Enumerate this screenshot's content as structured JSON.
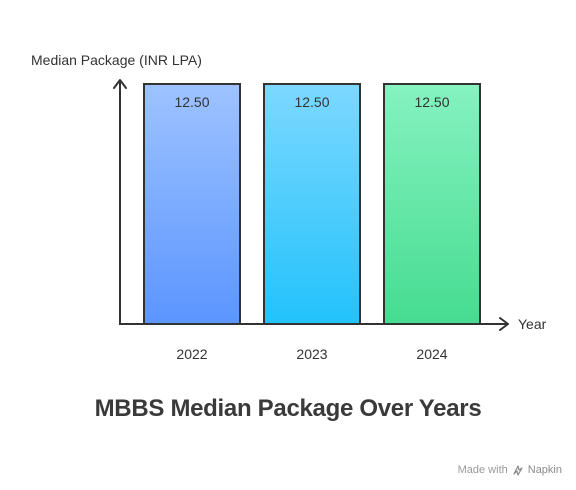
{
  "chart_data": {
    "type": "bar",
    "title": "MBBS Median Package Over Years",
    "ylabel": "Median Package (INR LPA)",
    "xlabel": "Year",
    "categories": [
      "2022",
      "2023",
      "2024"
    ],
    "values": [
      12.5,
      12.5,
      12.5
    ],
    "value_labels": [
      "12.50",
      "12.50",
      "12.50"
    ],
    "ylim": [
      0,
      12.5
    ],
    "grid": false,
    "legend": "none",
    "bar_gradients": [
      {
        "top": "#9ec3ff",
        "bottom": "#5b95ff"
      },
      {
        "top": "#7dd8ff",
        "bottom": "#22c2fb"
      },
      {
        "top": "#86f2c0",
        "bottom": "#46dc91"
      }
    ],
    "bar_border_color": "#333333"
  },
  "watermark": {
    "prefix": "Made with",
    "brand": "Napkin"
  }
}
